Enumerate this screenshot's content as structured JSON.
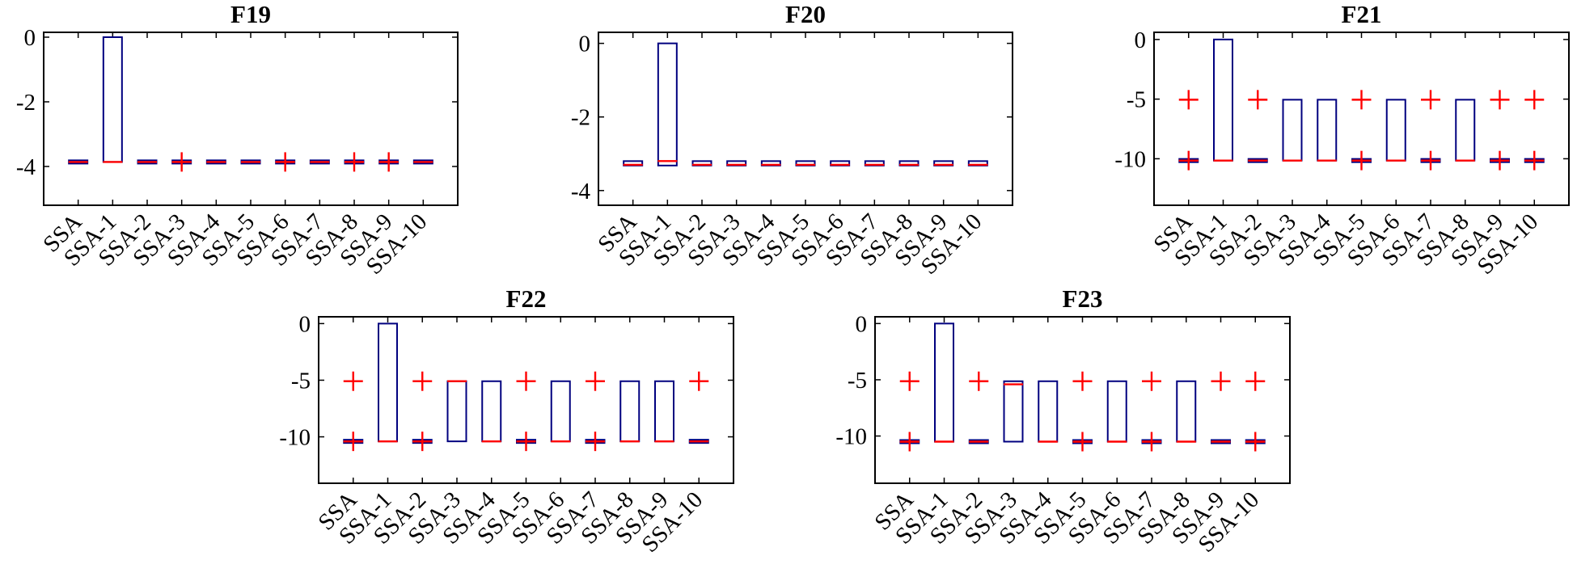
{
  "chart_data": [
    {
      "type": "box",
      "title": "F19",
      "categories": [
        "SSA",
        "SSA-1",
        "SSA-2",
        "SSA-3",
        "SSA-4",
        "SSA-5",
        "SSA-6",
        "SSA-7",
        "SSA-8",
        "SSA-9",
        "SSA-10"
      ],
      "ylim": [
        -5.2,
        0.15
      ],
      "yticks": [
        0,
        -2,
        -4
      ],
      "ytick_labels": [
        "0",
        "-2",
        "-4"
      ],
      "grid": false,
      "boxes": [
        {
          "q1": -3.86,
          "q3": -3.86,
          "median": -3.86,
          "outliers": []
        },
        {
          "q1": -3.86,
          "q3": 0.0,
          "median": -3.86,
          "outliers": []
        },
        {
          "q1": -3.86,
          "q3": -3.86,
          "median": -3.86,
          "outliers": []
        },
        {
          "q1": -3.86,
          "q3": -3.86,
          "median": -3.86,
          "outliers": [
            -3.86
          ]
        },
        {
          "q1": -3.86,
          "q3": -3.86,
          "median": -3.86,
          "outliers": []
        },
        {
          "q1": -3.86,
          "q3": -3.86,
          "median": -3.86,
          "outliers": []
        },
        {
          "q1": -3.86,
          "q3": -3.86,
          "median": -3.86,
          "outliers": [
            -3.86
          ]
        },
        {
          "q1": -3.86,
          "q3": -3.86,
          "median": -3.86,
          "outliers": []
        },
        {
          "q1": -3.86,
          "q3": -3.86,
          "median": -3.86,
          "outliers": [
            -3.86
          ]
        },
        {
          "q1": -3.86,
          "q3": -3.86,
          "median": -3.86,
          "outliers": [
            -3.86
          ]
        },
        {
          "q1": -3.86,
          "q3": -3.86,
          "median": -3.86,
          "outliers": []
        }
      ]
    },
    {
      "type": "box",
      "title": "F20",
      "categories": [
        "SSA",
        "SSA-1",
        "SSA-2",
        "SSA-3",
        "SSA-4",
        "SSA-5",
        "SSA-6",
        "SSA-7",
        "SSA-8",
        "SSA-9",
        "SSA-10"
      ],
      "ylim": [
        -4.4,
        0.3
      ],
      "yticks": [
        0,
        -2,
        -4
      ],
      "ytick_labels": [
        "0",
        "-2",
        "-4"
      ],
      "grid": false,
      "boxes": [
        {
          "q1": -3.32,
          "q3": -3.2,
          "median": -3.3,
          "outliers": []
        },
        {
          "q1": -3.32,
          "q3": 0.0,
          "median": -3.2,
          "outliers": []
        },
        {
          "q1": -3.32,
          "q3": -3.2,
          "median": -3.3,
          "outliers": []
        },
        {
          "q1": -3.32,
          "q3": -3.2,
          "median": -3.3,
          "outliers": []
        },
        {
          "q1": -3.32,
          "q3": -3.2,
          "median": -3.3,
          "outliers": []
        },
        {
          "q1": -3.32,
          "q3": -3.2,
          "median": -3.3,
          "outliers": []
        },
        {
          "q1": -3.32,
          "q3": -3.2,
          "median": -3.3,
          "outliers": []
        },
        {
          "q1": -3.32,
          "q3": -3.2,
          "median": -3.3,
          "outliers": []
        },
        {
          "q1": -3.32,
          "q3": -3.2,
          "median": -3.3,
          "outliers": []
        },
        {
          "q1": -3.32,
          "q3": -3.2,
          "median": -3.3,
          "outliers": []
        },
        {
          "q1": -3.32,
          "q3": -3.2,
          "median": -3.3,
          "outliers": []
        }
      ]
    },
    {
      "type": "box",
      "title": "F21",
      "categories": [
        "SSA",
        "SSA-1",
        "SSA-2",
        "SSA-3",
        "SSA-4",
        "SSA-5",
        "SSA-6",
        "SSA-7",
        "SSA-8",
        "SSA-9",
        "SSA-10"
      ],
      "ylim": [
        -13.9,
        0.6
      ],
      "yticks": [
        0,
        -5,
        -10
      ],
      "ytick_labels": [
        "0",
        "-5",
        "-10"
      ],
      "grid": false,
      "boxes": [
        {
          "q1": -10.15,
          "q3": -10.15,
          "median": -10.15,
          "outliers": [
            -5.05,
            -10.15
          ]
        },
        {
          "q1": -10.15,
          "q3": 0.0,
          "median": -10.15,
          "outliers": []
        },
        {
          "q1": -10.15,
          "q3": -10.15,
          "median": -10.15,
          "outliers": [
            -5.05
          ]
        },
        {
          "q1": -10.15,
          "q3": -5.05,
          "median": -10.15,
          "outliers": []
        },
        {
          "q1": -10.15,
          "q3": -5.05,
          "median": -10.15,
          "outliers": []
        },
        {
          "q1": -10.15,
          "q3": -10.15,
          "median": -10.15,
          "outliers": [
            -5.05,
            -10.15
          ]
        },
        {
          "q1": -10.15,
          "q3": -5.05,
          "median": -10.15,
          "outliers": []
        },
        {
          "q1": -10.15,
          "q3": -10.15,
          "median": -10.15,
          "outliers": [
            -5.05,
            -10.15
          ]
        },
        {
          "q1": -10.15,
          "q3": -5.05,
          "median": -10.15,
          "outliers": []
        },
        {
          "q1": -10.15,
          "q3": -10.15,
          "median": -10.15,
          "outliers": [
            -5.05,
            -10.15
          ]
        },
        {
          "q1": -10.15,
          "q3": -10.15,
          "median": -10.15,
          "outliers": [
            -5.05,
            -10.15
          ]
        }
      ]
    },
    {
      "type": "box",
      "title": "F22",
      "categories": [
        "SSA",
        "SSA-1",
        "SSA-2",
        "SSA-3",
        "SSA-4",
        "SSA-5",
        "SSA-6",
        "SSA-7",
        "SSA-8",
        "SSA-9",
        "SSA-10"
      ],
      "ylim": [
        -14.1,
        0.6
      ],
      "yticks": [
        0,
        -5,
        -10
      ],
      "ytick_labels": [
        "0",
        "-5",
        "-10"
      ],
      "grid": false,
      "boxes": [
        {
          "q1": -10.4,
          "q3": -10.4,
          "median": -10.4,
          "outliers": [
            -5.09,
            -10.4
          ]
        },
        {
          "q1": -10.4,
          "q3": 0.0,
          "median": -10.4,
          "outliers": []
        },
        {
          "q1": -10.4,
          "q3": -10.4,
          "median": -10.4,
          "outliers": [
            -5.09,
            -10.4
          ]
        },
        {
          "q1": -10.4,
          "q3": -5.09,
          "median": -5.09,
          "outliers": []
        },
        {
          "q1": -10.4,
          "q3": -5.09,
          "median": -10.4,
          "outliers": []
        },
        {
          "q1": -10.4,
          "q3": -10.4,
          "median": -10.4,
          "outliers": [
            -5.09,
            -10.4
          ]
        },
        {
          "q1": -10.4,
          "q3": -5.09,
          "median": -10.4,
          "outliers": []
        },
        {
          "q1": -10.4,
          "q3": -10.4,
          "median": -10.4,
          "outliers": [
            -5.09,
            -10.4
          ]
        },
        {
          "q1": -10.4,
          "q3": -5.09,
          "median": -10.4,
          "outliers": []
        },
        {
          "q1": -10.4,
          "q3": -5.09,
          "median": -10.4,
          "outliers": []
        },
        {
          "q1": -10.4,
          "q3": -10.4,
          "median": -10.4,
          "outliers": [
            -5.09
          ]
        }
      ]
    },
    {
      "type": "box",
      "title": "F23",
      "categories": [
        "SSA",
        "SSA-1",
        "SSA-2",
        "SSA-3",
        "SSA-4",
        "SSA-5",
        "SSA-6",
        "SSA-7",
        "SSA-8",
        "SSA-9",
        "SSA-10"
      ],
      "ylim": [
        -14.2,
        0.6
      ],
      "yticks": [
        0,
        -5,
        -10
      ],
      "ytick_labels": [
        "0",
        "-5",
        "-10"
      ],
      "grid": false,
      "boxes": [
        {
          "q1": -10.5,
          "q3": -10.5,
          "median": -10.5,
          "outliers": [
            -5.13,
            -10.5
          ]
        },
        {
          "q1": -10.5,
          "q3": 0.0,
          "median": -10.5,
          "outliers": []
        },
        {
          "q1": -10.5,
          "q3": -10.5,
          "median": -10.5,
          "outliers": [
            -5.13
          ]
        },
        {
          "q1": -10.5,
          "q3": -5.13,
          "median": -5.4,
          "outliers": []
        },
        {
          "q1": -10.5,
          "q3": -5.13,
          "median": -10.5,
          "outliers": []
        },
        {
          "q1": -10.5,
          "q3": -10.5,
          "median": -10.5,
          "outliers": [
            -5.13,
            -10.5
          ]
        },
        {
          "q1": -10.5,
          "q3": -5.13,
          "median": -10.5,
          "outliers": []
        },
        {
          "q1": -10.5,
          "q3": -10.5,
          "median": -10.5,
          "outliers": [
            -5.13,
            -10.5
          ]
        },
        {
          "q1": -10.5,
          "q3": -5.13,
          "median": -10.5,
          "outliers": []
        },
        {
          "q1": -10.5,
          "q3": -10.5,
          "median": -10.5,
          "outliers": [
            -5.13
          ]
        },
        {
          "q1": -10.5,
          "q3": -10.5,
          "median": -10.5,
          "outliers": [
            -5.13,
            -10.5
          ]
        }
      ]
    }
  ]
}
